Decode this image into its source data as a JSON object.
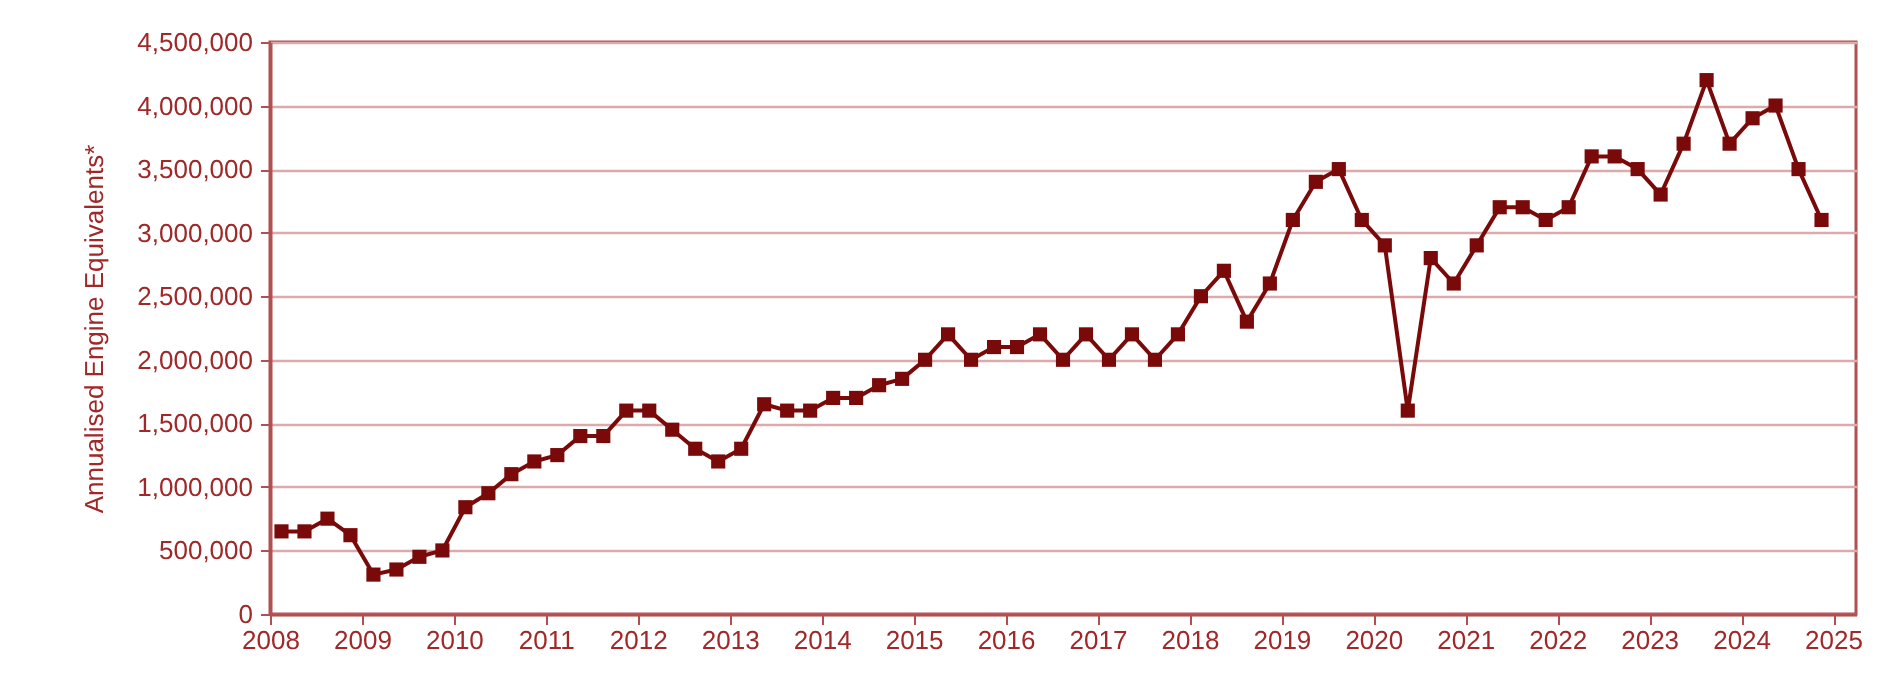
{
  "chart_data": {
    "type": "line",
    "ylabel": "Annualised  Engine Equivalents*",
    "x": [
      2008.125,
      2008.375,
      2008.625,
      2008.875,
      2009.125,
      2009.375,
      2009.625,
      2009.875,
      2010.125,
      2010.375,
      2010.625,
      2010.875,
      2011.125,
      2011.375,
      2011.625,
      2011.875,
      2012.125,
      2012.375,
      2012.625,
      2012.875,
      2013.125,
      2013.375,
      2013.625,
      2013.875,
      2014.125,
      2014.375,
      2014.625,
      2014.875,
      2015.125,
      2015.375,
      2015.625,
      2015.875,
      2016.125,
      2016.375,
      2016.625,
      2016.875,
      2017.125,
      2017.375,
      2017.625,
      2017.875,
      2018.125,
      2018.375,
      2018.625,
      2018.875,
      2019.125,
      2019.375,
      2019.625,
      2019.875,
      2020.125,
      2020.375,
      2020.625,
      2020.875,
      2021.125,
      2021.375,
      2021.625,
      2021.875,
      2022.125,
      2022.375,
      2022.625,
      2022.875,
      2023.125,
      2023.375,
      2023.625,
      2023.875,
      2024.125,
      2024.375,
      2024.625,
      2024.875
    ],
    "series": [
      {
        "color": "#7a0a0a",
        "values": [
          650000,
          650000,
          750000,
          620000,
          310000,
          350000,
          450000,
          500000,
          840000,
          950000,
          1100000,
          1200000,
          1250000,
          1400000,
          1400000,
          1600000,
          1600000,
          1450000,
          1300000,
          1200000,
          1300000,
          1650000,
          1600000,
          1600000,
          1700000,
          1700000,
          1800000,
          1850000,
          2000000,
          2200000,
          2000000,
          2100000,
          2100000,
          2200000,
          2000000,
          2200000,
          2000000,
          2200000,
          2000000,
          2200000,
          2500000,
          2700000,
          2300000,
          2600000,
          3100000,
          3400000,
          3500000,
          3100000,
          2900000,
          1600000,
          2800000,
          2600000,
          2900000,
          3200000,
          3200000,
          3100000,
          3200000,
          3600000,
          3600000,
          3500000,
          3300000,
          3700000,
          4200000,
          3700000,
          3900000,
          4000000,
          3500000,
          3100000
        ]
      }
    ],
    "xlim": [
      2008,
      2025.25
    ],
    "xticks": [
      2008,
      2009,
      2010,
      2011,
      2012,
      2013,
      2014,
      2015,
      2016,
      2017,
      2018,
      2019,
      2020,
      2021,
      2022,
      2023,
      2024,
      2025
    ],
    "ylim": [
      0,
      4500000
    ],
    "yticks": [
      0,
      {
        "value": 500000,
        "label": "500,000"
      },
      {
        "value": 1000000,
        "label": "1,000,000"
      },
      {
        "value": 1500000,
        "label": "1,500,000"
      },
      {
        "value": 2000000,
        "label": "2,000,000"
      },
      {
        "value": 2500000,
        "label": "2,500,000"
      },
      {
        "value": 3000000,
        "label": "3,000,000"
      },
      {
        "value": 3500000,
        "label": "3,500,000"
      },
      {
        "value": 4000000,
        "label": "4,000,000"
      },
      {
        "value": 4500000,
        "label": "4,500,000"
      }
    ],
    "grid": "y",
    "marker": "square",
    "line_style": "solid",
    "legend": false
  }
}
